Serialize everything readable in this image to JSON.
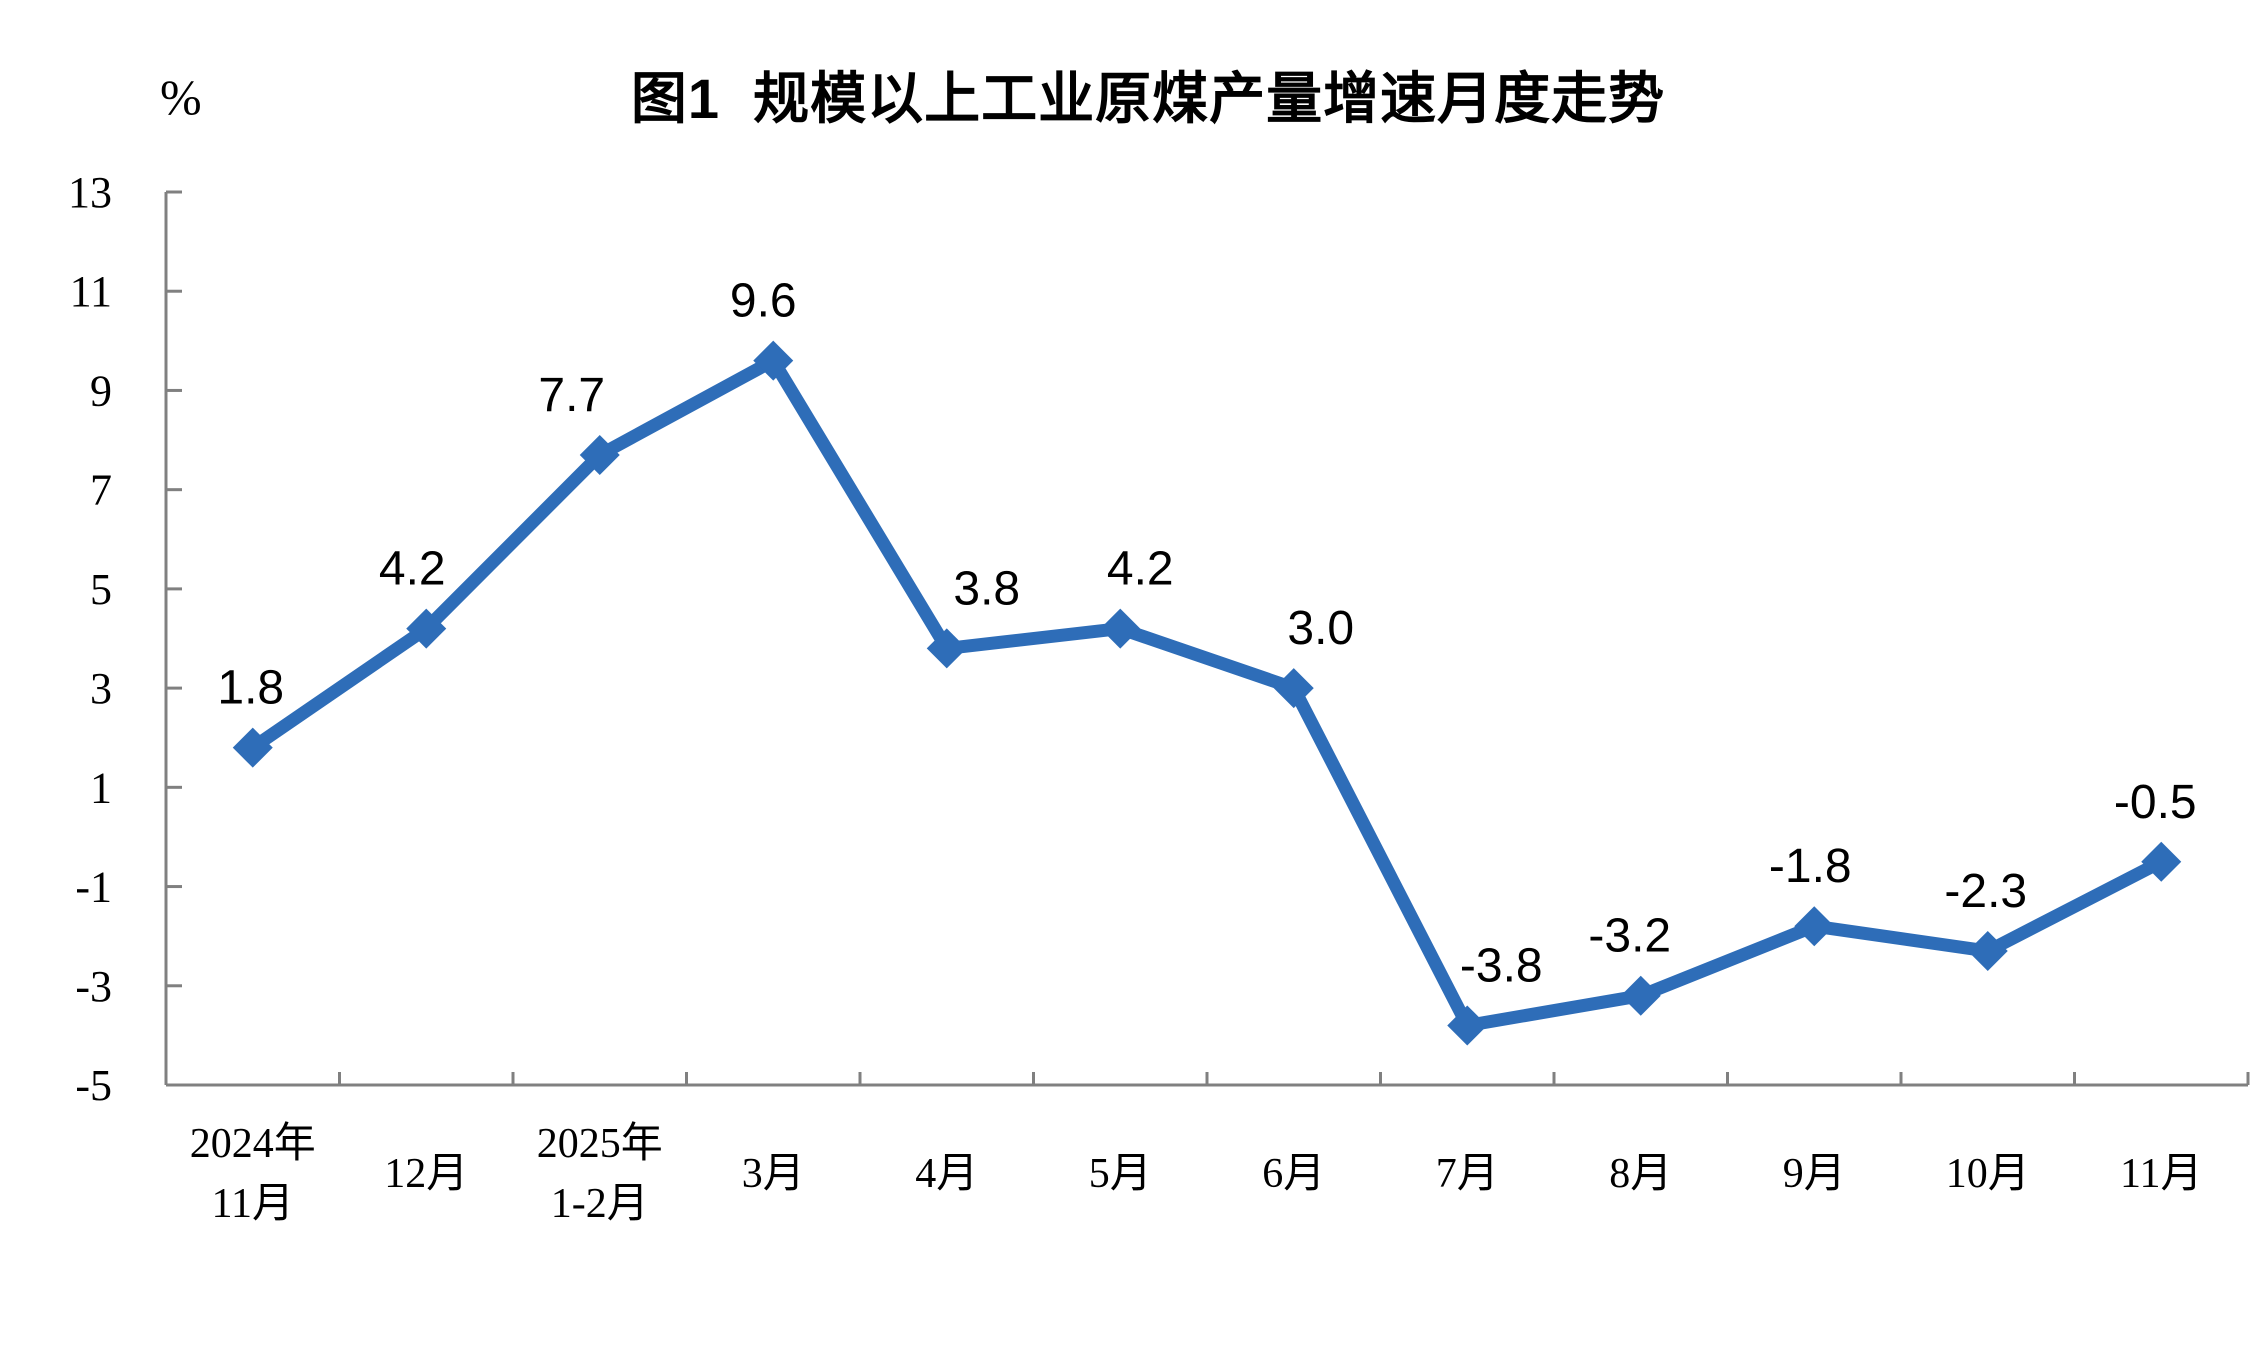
{
  "chart_data": {
    "type": "line",
    "title": "图1  规模以上工业原煤产量增速月度走势",
    "y_unit_label": "%",
    "categories": [
      "2024年\n11月",
      "12月",
      "2025年\n1-2月",
      "3月",
      "4月",
      "5月",
      "6月",
      "7月",
      "8月",
      "9月",
      "10月",
      "11月"
    ],
    "values": [
      1.8,
      4.2,
      7.7,
      9.6,
      3.8,
      4.2,
      3.0,
      -3.8,
      -3.2,
      -1.8,
      -2.3,
      -0.5
    ],
    "data_labels": [
      "1.8",
      "4.2",
      "7.7",
      "9.6",
      "3.8",
      "4.2",
      "3.0",
      "-3.8",
      "-3.2",
      "-1.8",
      "-2.3",
      "-0.5"
    ],
    "y_ticks": [
      13,
      11,
      9,
      7,
      5,
      3,
      1,
      -1,
      -3,
      -5
    ],
    "ylim": [
      -5,
      13
    ],
    "xlabel": "",
    "ylabel": "",
    "grid": false,
    "legend": "none",
    "marker": "diamond",
    "colors": {
      "line": "#2E6DB8",
      "axis": "#808080",
      "text": "#000000",
      "background": "#FFFFFF"
    }
  }
}
